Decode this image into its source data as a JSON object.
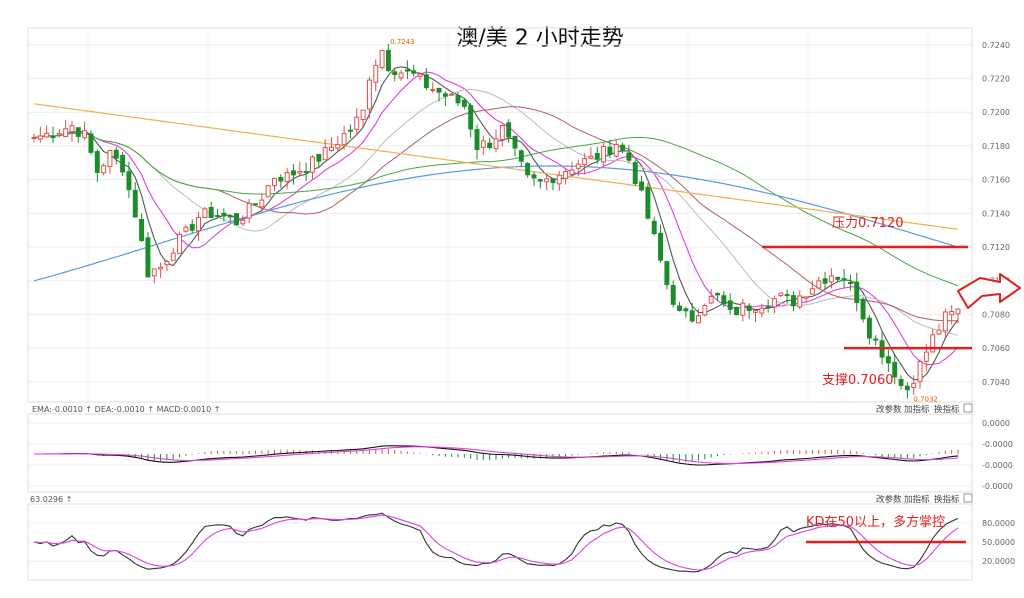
{
  "chart_data": {
    "type": "candlestick",
    "title": "澳/美 2 小时走势",
    "price_panel": {
      "ylim": [
        0.7028,
        0.725
      ],
      "yticks": [
        "0.7240",
        "0.7220",
        "0.7200",
        "0.7180",
        "0.7160",
        "0.7140",
        "0.7120",
        "0.7100",
        "0.7080",
        "0.7060",
        "0.7040"
      ],
      "resistance": {
        "label": "压力0.7120",
        "value": 0.712
      },
      "support": {
        "label": "支撑0.7060",
        "value": 0.706
      },
      "high_label": "0.7243",
      "low_label": "0.7032",
      "anchors": [
        [
          0,
          0.7185
        ],
        [
          3,
          0.7188
        ],
        [
          6,
          0.7192
        ],
        [
          8,
          0.7186
        ],
        [
          10,
          0.7165
        ],
        [
          12,
          0.7175
        ],
        [
          14,
          0.7168
        ],
        [
          16,
          0.714
        ],
        [
          18,
          0.7105
        ],
        [
          20,
          0.7108
        ],
        [
          22,
          0.712
        ],
        [
          24,
          0.7128
        ],
        [
          26,
          0.7138
        ],
        [
          28,
          0.714
        ],
        [
          30,
          0.7138
        ],
        [
          32,
          0.7135
        ],
        [
          34,
          0.7142
        ],
        [
          36,
          0.715
        ],
        [
          38,
          0.7162
        ],
        [
          40,
          0.7162
        ],
        [
          42,
          0.7166
        ],
        [
          44,
          0.717
        ],
        [
          46,
          0.7176
        ],
        [
          48,
          0.7183
        ],
        [
          50,
          0.719
        ],
        [
          52,
          0.72
        ],
        [
          53,
          0.7222
        ],
        [
          54,
          0.723
        ],
        [
          55,
          0.7237
        ],
        [
          56,
          0.7228
        ],
        [
          58,
          0.7224
        ],
        [
          60,
          0.7222
        ],
        [
          62,
          0.7216
        ],
        [
          64,
          0.7212
        ],
        [
          66,
          0.7208
        ],
        [
          68,
          0.7204
        ],
        [
          70,
          0.718
        ],
        [
          72,
          0.7182
        ],
        [
          74,
          0.719
        ],
        [
          76,
          0.7175
        ],
        [
          78,
          0.716
        ],
        [
          80,
          0.7158
        ],
        [
          82,
          0.7162
        ],
        [
          84,
          0.7166
        ],
        [
          86,
          0.717
        ],
        [
          88,
          0.7172
        ],
        [
          90,
          0.7176
        ],
        [
          92,
          0.7182
        ],
        [
          94,
          0.7172
        ],
        [
          96,
          0.715
        ],
        [
          98,
          0.7125
        ],
        [
          100,
          0.7098
        ],
        [
          102,
          0.708
        ],
        [
          104,
          0.7078
        ],
        [
          106,
          0.7088
        ],
        [
          108,
          0.709
        ],
        [
          110,
          0.708
        ],
        [
          112,
          0.7084
        ],
        [
          114,
          0.7086
        ],
        [
          116,
          0.7088
        ],
        [
          118,
          0.709
        ],
        [
          120,
          0.7088
        ],
        [
          122,
          0.7094
        ],
        [
          124,
          0.71
        ],
        [
          126,
          0.7104
        ],
        [
          128,
          0.7102
        ],
        [
          130,
          0.709
        ],
        [
          132,
          0.707
        ],
        [
          134,
          0.7058
        ],
        [
          136,
          0.7046
        ],
        [
          137,
          0.7038
        ],
        [
          138,
          0.7036
        ],
        [
          140,
          0.705
        ],
        [
          142,
          0.7066
        ],
        [
          144,
          0.7078
        ],
        [
          146,
          0.7082
        ]
      ]
    },
    "macd_panel": {
      "legend": "EMA:-0.0010 ↑ DEA:-0.0010 ↑ MACD:0.0010 ↑",
      "yticks": [
        "0.0000",
        "-0.0000",
        "-0.0000",
        "-0.0000"
      ],
      "buttons": [
        "改参数",
        "加指标",
        "换指标"
      ]
    },
    "kd_panel": {
      "legend": "63.0296 ↑",
      "yticks": [
        "80.0000",
        "50.0000",
        "20.0000"
      ],
      "level": {
        "label": "KD在50以上，多方掌控",
        "value": 50
      },
      "buttons": [
        "改参数",
        "加指标",
        "换指标"
      ]
    },
    "colors": {
      "up": "#e05050",
      "down": "#1a8c2a",
      "ma1": "#555555",
      "ma2": "#e040e0",
      "ma3": "#bbbbbb",
      "ma4": "#b06060",
      "ma5": "#44aa44",
      "ma6": "#5a9ae0",
      "ma7": "#f0b050",
      "annotation": "#e02020"
    }
  }
}
